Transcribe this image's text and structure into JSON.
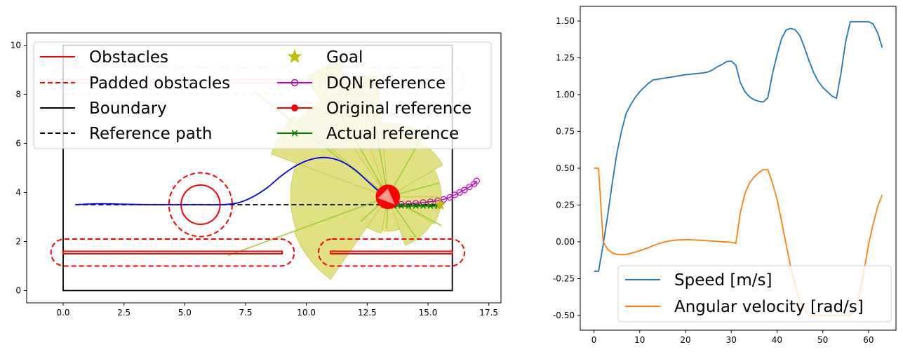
{
  "chart_data": [
    {
      "type": "line",
      "xlim": [
        -1.5,
        18.0
      ],
      "ylim": [
        -0.5,
        10.5
      ],
      "x_ticks": [
        "0.0",
        "2.5",
        "5.0",
        "7.5",
        "10.0",
        "12.5",
        "15.0",
        "17.5"
      ],
      "y_ticks": [
        "0",
        "2",
        "4",
        "6",
        "8",
        "10"
      ],
      "legend_placement": "top",
      "legend": [
        {
          "label": "Obstacles",
          "color": "#ff0000",
          "style": "solid"
        },
        {
          "label": "Padded obstacles",
          "color": "#ff0000",
          "style": "dashed"
        },
        {
          "label": "Boundary",
          "color": "#000000",
          "style": "solid"
        },
        {
          "label": "Reference path",
          "color": "#000000",
          "style": "dashed"
        },
        {
          "label": "Goal",
          "color": "#bfbf00",
          "style": "star"
        },
        {
          "label": "DQN reference",
          "color": "#bf00bf",
          "style": "open-circle"
        },
        {
          "label": "Original reference",
          "color": "#ff0000",
          "style": "filled-circle"
        },
        {
          "label": "Actual reference",
          "color": "#008000",
          "style": "x-marker"
        }
      ],
      "boundary": [
        [
          0,
          0
        ],
        [
          16,
          0
        ],
        [
          16,
          10
        ],
        [
          0,
          10
        ]
      ],
      "obstacles": {
        "circle": {
          "center": [
            5.65,
            3.5
          ],
          "radius": 0.8,
          "padded_radius": 1.3
        },
        "bars": [
          {
            "x": [
              0,
              9.0
            ],
            "y": [
              1.5,
              1.6
            ]
          },
          {
            "x": [
              11.0,
              16.0
            ],
            "y": [
              1.5,
              1.6
            ]
          }
        ],
        "padded_bars": [
          {
            "x": [
              -0.5,
              9.5
            ],
            "y": [
              1.0,
              2.1
            ]
          },
          {
            "x": [
              10.5,
              16.5
            ],
            "y": [
              1.0,
              2.1
            ]
          }
        ],
        "padded_top_ghost": [
          {
            "x": [
              -0.5,
              9.5
            ],
            "y": [
              8.0,
              9.1
            ]
          },
          {
            "x": [
              10.5,
              16.5
            ],
            "y": [
              8.0,
              9.1
            ]
          }
        ]
      },
      "reference_path": {
        "x": [
          0.5,
          15.5
        ],
        "y": [
          3.5,
          3.5
        ]
      },
      "trajectory": {
        "color": "#0000ff",
        "x": [
          0.5,
          1.5,
          2.5,
          3.5,
          4.5,
          5.5,
          6.5,
          7.2,
          7.8,
          8.4,
          9.0,
          9.6,
          10.2,
          10.8,
          11.4,
          12.0,
          12.6,
          13.2
        ],
        "y": [
          3.5,
          3.54,
          3.52,
          3.5,
          3.5,
          3.5,
          3.5,
          3.58,
          3.82,
          4.2,
          4.7,
          5.1,
          5.35,
          5.42,
          5.28,
          4.92,
          4.38,
          3.85
        ]
      },
      "robot": {
        "x": 13.35,
        "y": 3.82,
        "radius": 0.5,
        "color": "#ff0000"
      },
      "goal": {
        "x": 15.5,
        "y": 3.5
      },
      "dqn_reference": {
        "color": "#bf00bf",
        "x": [
          13.6,
          13.9,
          14.2,
          14.5,
          14.8,
          15.1,
          15.4,
          15.65,
          15.9,
          16.1,
          16.3,
          16.5,
          16.7,
          16.9,
          17.0
        ],
        "y": [
          3.5,
          3.52,
          3.54,
          3.56,
          3.59,
          3.62,
          3.66,
          3.72,
          3.8,
          3.9,
          4.0,
          4.1,
          4.22,
          4.35,
          4.47
        ]
      },
      "actual_reference": {
        "color": "#008000",
        "x": [
          13.6,
          13.9,
          14.2,
          14.5,
          14.8,
          15.1,
          15.4
        ],
        "y": [
          3.45,
          3.45,
          3.45,
          3.45,
          3.45,
          3.45,
          3.45
        ]
      },
      "sensor_wedges": {
        "color": "#d4d44f",
        "center": [
          13.35,
          3.82
        ],
        "wedges": [
          {
            "theta1": 95,
            "theta2": 110,
            "r": 5.0
          },
          {
            "theta1": 110,
            "theta2": 125,
            "r": 5.9
          },
          {
            "theta1": 125,
            "theta2": 140,
            "r": 4.8
          },
          {
            "theta1": 140,
            "theta2": 160,
            "r": 5.1
          },
          {
            "theta1": 160,
            "theta2": 200,
            "r": 4.0
          },
          {
            "theta1": 200,
            "theta2": 235,
            "r": 4.1
          },
          {
            "theta1": 235,
            "theta2": 260,
            "r": 1.5
          },
          {
            "theta1": 260,
            "theta2": 290,
            "r": 1.4
          },
          {
            "theta1": 290,
            "theta2": 330,
            "r": 2.1
          },
          {
            "theta1": 330,
            "theta2": 360,
            "r": 2.2
          },
          {
            "theta1": 0,
            "theta2": 30,
            "r": 2.2
          },
          {
            "theta1": 30,
            "theta2": 60,
            "r": 2.6
          },
          {
            "theta1": 60,
            "theta2": 95,
            "r": 3.0
          }
        ],
        "rays": [
          {
            "angle": 142,
            "r": 7.0
          },
          {
            "angle": 120,
            "r": 4.6
          },
          {
            "angle": 100,
            "r": 4.0
          },
          {
            "angle": 200,
            "r": 7.0
          },
          {
            "angle": 222,
            "r": 1.5
          },
          {
            "angle": 268,
            "r": 1.3
          },
          {
            "angle": 305,
            "r": 2.0
          },
          {
            "angle": 332,
            "r": 2.5
          },
          {
            "angle": 15,
            "r": 2.2
          },
          {
            "angle": 60,
            "r": 3.4
          }
        ]
      }
    },
    {
      "type": "line",
      "xlim": [
        -3,
        66
      ],
      "ylim": [
        -0.6,
        1.6
      ],
      "x_ticks": [
        "0",
        "10",
        "20",
        "30",
        "40",
        "50",
        "60"
      ],
      "y_ticks": [
        "-0.50",
        "-0.25",
        "0.00",
        "0.25",
        "0.50",
        "0.75",
        "1.00",
        "1.25",
        "1.50"
      ],
      "legend_placement": "lower right",
      "series": [
        {
          "name": "Speed [m/s]",
          "color": "#1f77b4",
          "x": [
            0,
            1,
            2,
            3,
            4,
            5,
            6,
            7,
            8,
            9,
            10,
            11,
            12,
            13,
            14,
            15,
            16,
            17,
            18,
            19,
            20,
            21,
            22,
            23,
            24,
            25,
            26,
            27,
            28,
            29,
            30,
            31,
            32,
            33,
            34,
            35,
            36,
            37,
            38,
            39,
            40,
            41,
            42,
            43,
            44,
            45,
            46,
            47,
            48,
            49,
            50,
            51,
            52,
            53,
            54,
            55,
            56,
            57,
            58,
            59,
            60,
            61,
            62,
            63
          ],
          "values": [
            -0.2,
            -0.2,
            -0.02,
            0.18,
            0.4,
            0.6,
            0.75,
            0.87,
            0.93,
            0.98,
            1.02,
            1.05,
            1.08,
            1.1,
            1.105,
            1.11,
            1.115,
            1.12,
            1.125,
            1.13,
            1.135,
            1.138,
            1.142,
            1.145,
            1.148,
            1.155,
            1.17,
            1.19,
            1.205,
            1.225,
            1.228,
            1.2,
            1.08,
            1.02,
            0.985,
            0.965,
            0.955,
            0.95,
            0.98,
            1.14,
            1.27,
            1.38,
            1.44,
            1.45,
            1.44,
            1.4,
            1.32,
            1.23,
            1.15,
            1.09,
            1.05,
            1.02,
            0.99,
            0.975,
            1.15,
            1.36,
            1.495,
            1.495,
            1.495,
            1.495,
            1.495,
            1.48,
            1.42,
            1.32
          ]
        },
        {
          "name": "Angular velocity [rad/s]",
          "color": "#ff7f0e",
          "x": [
            0,
            1,
            2,
            3,
            4,
            5,
            6,
            7,
            8,
            9,
            10,
            11,
            12,
            13,
            14,
            15,
            16,
            17,
            18,
            19,
            20,
            21,
            22,
            23,
            24,
            25,
            26,
            27,
            28,
            29,
            30,
            31,
            32,
            33,
            34,
            35,
            36,
            37,
            38,
            39,
            40,
            41,
            42,
            43,
            44,
            45,
            46,
            47,
            48,
            49,
            50,
            51,
            52,
            53,
            54,
            55,
            56,
            57,
            58,
            59,
            60,
            61,
            62,
            63
          ],
          "values": [
            0.5,
            0.5,
            0.0,
            -0.05,
            -0.075,
            -0.085,
            -0.088,
            -0.085,
            -0.078,
            -0.07,
            -0.06,
            -0.05,
            -0.038,
            -0.025,
            -0.014,
            -0.005,
            0.003,
            0.008,
            0.012,
            0.014,
            0.015,
            0.014,
            0.013,
            0.011,
            0.009,
            0.007,
            0.005,
            0.003,
            0.001,
            -0.001,
            -0.003,
            -0.01,
            0.2,
            0.33,
            0.4,
            0.44,
            0.47,
            0.49,
            0.49,
            0.4,
            0.29,
            0.14,
            -0.02,
            -0.17,
            -0.3,
            -0.4,
            -0.46,
            -0.5,
            -0.5,
            -0.5,
            -0.5,
            -0.5,
            -0.5,
            -0.5,
            -0.5,
            -0.5,
            -0.5,
            -0.46,
            -0.36,
            -0.2,
            -0.02,
            0.12,
            0.24,
            0.32
          ]
        }
      ]
    }
  ]
}
